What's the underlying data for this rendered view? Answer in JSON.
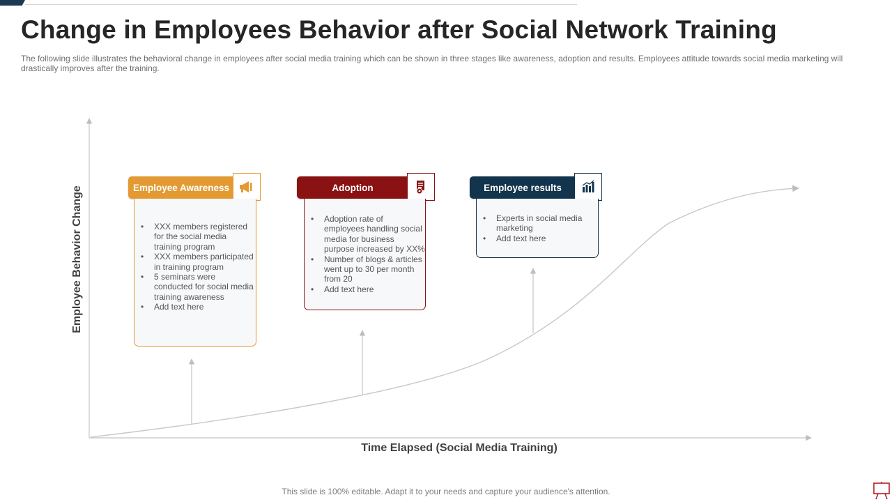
{
  "slide": {
    "title": "Change in Employees Behavior after Social Network Training",
    "subtitle": "The following slide illustrates the behavioral change in employees after social media training which can be shown in three stages like awareness, adoption and results. Employees attitude towards social media marketing will drastically improves after the training.",
    "footer": "This slide is 100% editable. Adapt it to your needs and capture your audience's attention."
  },
  "axes": {
    "y_label": "Employee Behavior Change",
    "x_label": "Time Elapsed (Social Media Training)"
  },
  "stages": [
    {
      "heading": "Employee Awareness",
      "color": "#e39a32",
      "icon": "megaphone-icon",
      "bullets": [
        "XXX  members registered for the social media training program",
        "XXX  members participated in training program",
        "5 seminars were conducted for social media training awareness",
        "Add text here"
      ]
    },
    {
      "heading": "Adoption",
      "color": "#8b1212",
      "icon": "document-gear-icon",
      "bullets": [
        "Adoption rate of employees handling social media for business purpose increased by XX%",
        "Number of blogs & articles went up to  30 per month from 20",
        "Add text here"
      ]
    },
    {
      "heading": "Employee results",
      "color": "#12344d",
      "icon": "bar-chart-icon",
      "bullets": [
        "Experts in social media marketing",
        "Add text here"
      ]
    }
  ]
}
